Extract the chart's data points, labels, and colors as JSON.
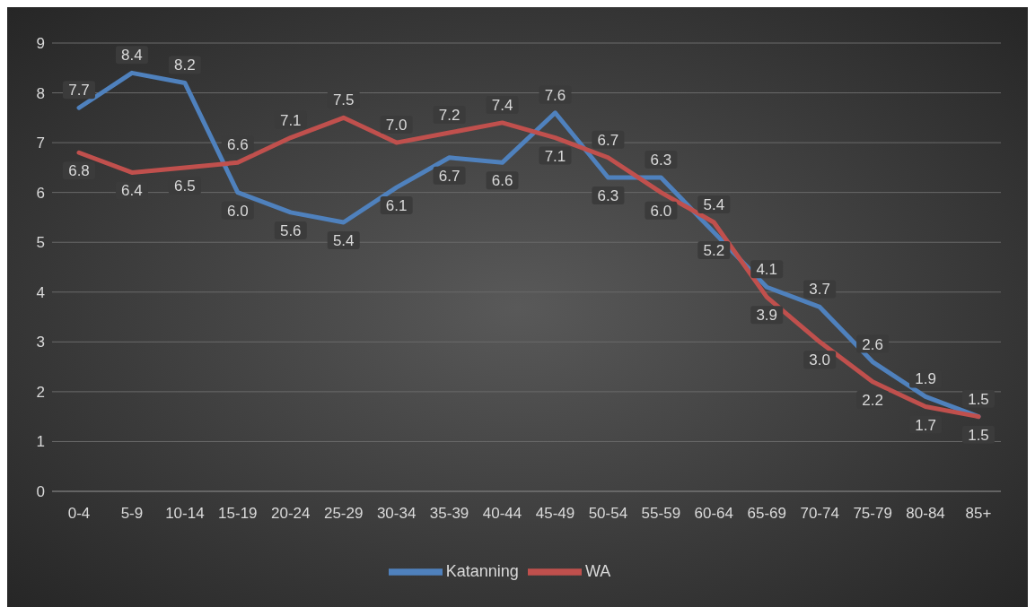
{
  "chart_data": {
    "type": "line",
    "categories": [
      "0-4",
      "5-9",
      "10-14",
      "15-19",
      "20-24",
      "25-29",
      "30-34",
      "35-39",
      "40-44",
      "45-49",
      "50-54",
      "55-59",
      "60-64",
      "65-69",
      "70-74",
      "75-79",
      "80-84",
      "85+"
    ],
    "series": [
      {
        "name": "Katanning",
        "color": "#4f81bd",
        "values": [
          7.7,
          8.4,
          8.2,
          6.0,
          5.6,
          5.4,
          6.1,
          6.7,
          6.6,
          7.6,
          6.3,
          6.3,
          5.2,
          4.1,
          3.7,
          2.6,
          1.9,
          1.5
        ],
        "value_labels": [
          "7.7",
          "8.4",
          "8.2",
          "6.0",
          "5.6",
          "5.4",
          "6.1",
          "6.7",
          "6.6",
          "7.6",
          "6.3",
          "6.3",
          "5.2",
          "4.1",
          "3.7",
          "2.6",
          "1.9",
          "1.5"
        ]
      },
      {
        "name": "WA",
        "color": "#c0504d",
        "values": [
          6.8,
          6.4,
          6.5,
          6.6,
          7.1,
          7.5,
          7.0,
          7.2,
          7.4,
          7.1,
          6.7,
          6.0,
          5.4,
          3.9,
          3.0,
          2.2,
          1.7,
          1.5
        ],
        "value_labels": [
          "6.8",
          "6.4",
          "6.5",
          "6.6",
          "7.1",
          "7.5",
          "7.0",
          "7.2",
          "7.4",
          "7.1",
          "6.7",
          "6.0",
          "5.4",
          "3.9",
          "3.0",
          "2.2",
          "1.7",
          "1.5"
        ]
      }
    ],
    "ylim": [
      0,
      9
    ],
    "yticks": [
      0,
      1,
      2,
      3,
      4,
      5,
      6,
      7,
      8,
      9
    ],
    "grid": "y",
    "legend": "bottom",
    "marker": "none",
    "line_style": "solid"
  }
}
